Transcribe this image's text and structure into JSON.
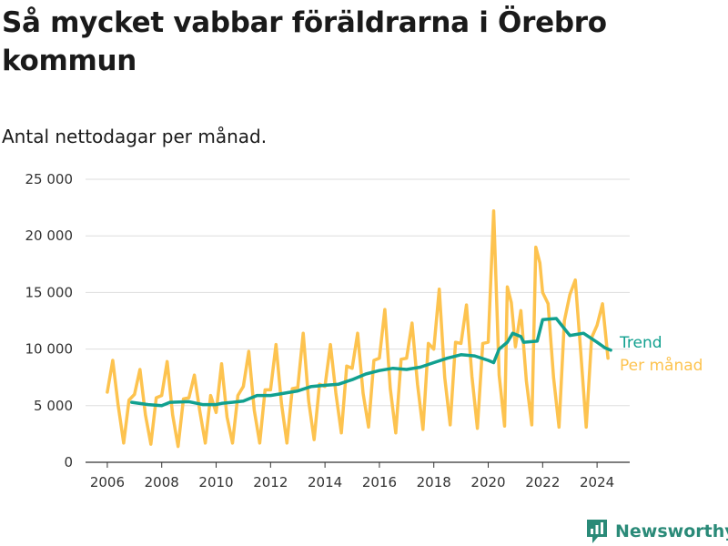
{
  "title": "Så mycket vabbar föräldrarna i Örebro kommun",
  "subtitle": "Antal nettodagar per månad.",
  "brand": {
    "name": "Newsworthy",
    "color": "#2a8a78"
  },
  "colors": {
    "monthly": "#fdc34f",
    "trend": "#11a08f",
    "grid": "#dddddd",
    "axis": "#333333"
  },
  "chart_data": {
    "type": "line",
    "title": "",
    "xlabel": "",
    "ylabel": "",
    "x_ticks": [
      "2006",
      "2008",
      "2010",
      "2012",
      "2014",
      "2016",
      "2018",
      "2020",
      "2022",
      "2024"
    ],
    "y_ticks": [
      "0",
      "5 000",
      "10 000",
      "15 000",
      "20 000",
      "25 000"
    ],
    "xlim": [
      2005.2,
      2025.2
    ],
    "ylim": [
      0,
      25000
    ],
    "grid": "horizontal",
    "legend": "direct labels at right end of lines",
    "series": [
      {
        "name": "Per månad",
        "color": "#fdc34f",
        "points": [
          [
            2006.0,
            6200
          ],
          [
            2006.2,
            9000
          ],
          [
            2006.4,
            5000
          ],
          [
            2006.6,
            1700
          ],
          [
            2006.8,
            5500
          ],
          [
            2007.0,
            6000
          ],
          [
            2007.2,
            8200
          ],
          [
            2007.4,
            4200
          ],
          [
            2007.6,
            1600
          ],
          [
            2007.8,
            5700
          ],
          [
            2008.0,
            5900
          ],
          [
            2008.2,
            8900
          ],
          [
            2008.4,
            4200
          ],
          [
            2008.6,
            1400
          ],
          [
            2008.8,
            5600
          ],
          [
            2009.0,
            5700
          ],
          [
            2009.2,
            7700
          ],
          [
            2009.4,
            4500
          ],
          [
            2009.6,
            1700
          ],
          [
            2009.8,
            5900
          ],
          [
            2010.0,
            4400
          ],
          [
            2010.2,
            8700
          ],
          [
            2010.4,
            4000
          ],
          [
            2010.6,
            1700
          ],
          [
            2010.8,
            5900
          ],
          [
            2011.0,
            6700
          ],
          [
            2011.2,
            9800
          ],
          [
            2011.4,
            4600
          ],
          [
            2011.6,
            1700
          ],
          [
            2011.8,
            6400
          ],
          [
            2012.0,
            6400
          ],
          [
            2012.2,
            10400
          ],
          [
            2012.4,
            5200
          ],
          [
            2012.6,
            1700
          ],
          [
            2012.8,
            6500
          ],
          [
            2013.0,
            6600
          ],
          [
            2013.2,
            11400
          ],
          [
            2013.4,
            5400
          ],
          [
            2013.6,
            2000
          ],
          [
            2013.8,
            6900
          ],
          [
            2014.0,
            6700
          ],
          [
            2014.2,
            10400
          ],
          [
            2014.4,
            6100
          ],
          [
            2014.6,
            2600
          ],
          [
            2014.8,
            8500
          ],
          [
            2015.0,
            8300
          ],
          [
            2015.2,
            11400
          ],
          [
            2015.4,
            6100
          ],
          [
            2015.6,
            3100
          ],
          [
            2015.8,
            9000
          ],
          [
            2016.0,
            9200
          ],
          [
            2016.2,
            13500
          ],
          [
            2016.4,
            6500
          ],
          [
            2016.6,
            2600
          ],
          [
            2016.8,
            9100
          ],
          [
            2017.0,
            9200
          ],
          [
            2017.2,
            12300
          ],
          [
            2017.4,
            6900
          ],
          [
            2017.6,
            2900
          ],
          [
            2017.8,
            10500
          ],
          [
            2018.0,
            10000
          ],
          [
            2018.2,
            15300
          ],
          [
            2018.4,
            7500
          ],
          [
            2018.6,
            3300
          ],
          [
            2018.8,
            10600
          ],
          [
            2019.0,
            10500
          ],
          [
            2019.2,
            13900
          ],
          [
            2019.4,
            7600
          ],
          [
            2019.6,
            3000
          ],
          [
            2019.8,
            10500
          ],
          [
            2020.0,
            10600
          ],
          [
            2020.2,
            22200
          ],
          [
            2020.4,
            7700
          ],
          [
            2020.6,
            3200
          ],
          [
            2020.7,
            15500
          ],
          [
            2020.85,
            14100
          ],
          [
            2021.0,
            10200
          ],
          [
            2021.2,
            13400
          ],
          [
            2021.4,
            7200
          ],
          [
            2021.6,
            3300
          ],
          [
            2021.75,
            19000
          ],
          [
            2021.9,
            17600
          ],
          [
            2022.0,
            15000
          ],
          [
            2022.2,
            14000
          ],
          [
            2022.4,
            7500
          ],
          [
            2022.6,
            3100
          ],
          [
            2022.8,
            12500
          ],
          [
            2023.0,
            14800
          ],
          [
            2023.2,
            16100
          ],
          [
            2023.4,
            9700
          ],
          [
            2023.6,
            3100
          ],
          [
            2023.8,
            11000
          ],
          [
            2024.0,
            12100
          ],
          [
            2024.2,
            14000
          ],
          [
            2024.4,
            9200
          ]
        ]
      },
      {
        "name": "Trend",
        "color": "#11a08f",
        "points": [
          [
            2006.9,
            5300
          ],
          [
            2007.5,
            5100
          ],
          [
            2008.0,
            5000
          ],
          [
            2008.3,
            5300
          ],
          [
            2009.0,
            5350
          ],
          [
            2009.5,
            5100
          ],
          [
            2010.0,
            5100
          ],
          [
            2010.2,
            5200
          ],
          [
            2011.0,
            5400
          ],
          [
            2011.5,
            5900
          ],
          [
            2012.0,
            5900
          ],
          [
            2012.5,
            6100
          ],
          [
            2013.0,
            6300
          ],
          [
            2013.5,
            6700
          ],
          [
            2014.0,
            6800
          ],
          [
            2014.5,
            6900
          ],
          [
            2015.0,
            7300
          ],
          [
            2015.5,
            7800
          ],
          [
            2016.0,
            8100
          ],
          [
            2016.5,
            8300
          ],
          [
            2017.0,
            8200
          ],
          [
            2017.5,
            8400
          ],
          [
            2018.0,
            8800
          ],
          [
            2018.5,
            9200
          ],
          [
            2019.0,
            9500
          ],
          [
            2019.5,
            9400
          ],
          [
            2020.0,
            9000
          ],
          [
            2020.2,
            8800
          ],
          [
            2020.4,
            10000
          ],
          [
            2020.7,
            10600
          ],
          [
            2020.9,
            11400
          ],
          [
            2021.2,
            11100
          ],
          [
            2021.3,
            10600
          ],
          [
            2021.8,
            10700
          ],
          [
            2022.0,
            12600
          ],
          [
            2022.5,
            12700
          ],
          [
            2023.0,
            11200
          ],
          [
            2023.5,
            11400
          ],
          [
            2024.0,
            10600
          ],
          [
            2024.3,
            10100
          ],
          [
            2024.5,
            9900
          ]
        ]
      }
    ]
  }
}
